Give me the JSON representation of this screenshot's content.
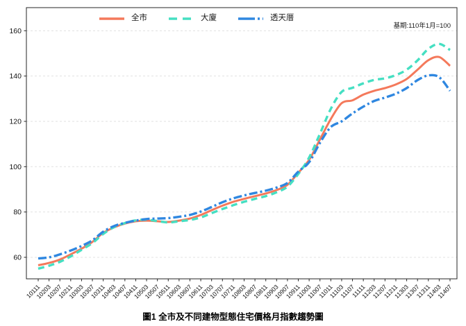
{
  "chart_data": {
    "type": "line",
    "title": "圖1 全市及不同建物型態住宅價格月指數趨勢圖",
    "annotation": "基期:110年1月=100",
    "xlabel": "",
    "ylabel": "",
    "ylim": [
      50.5,
      170.2
    ],
    "yticks": [
      60,
      80,
      100,
      120,
      140,
      160
    ],
    "grid": "horizontal-dashed",
    "legend_position": "top-left-inside",
    "categories": [
      "10111",
      "10203",
      "10207",
      "10211",
      "10303",
      "10307",
      "10311",
      "10403",
      "10407",
      "10411",
      "10503",
      "10507",
      "10511",
      "10603",
      "10607",
      "10611",
      "10703",
      "10707",
      "10711",
      "10803",
      "10807",
      "10811",
      "10903",
      "10907",
      "10911",
      "11003",
      "11007",
      "11011",
      "11103",
      "11107",
      "11111",
      "11203",
      "11207",
      "11211",
      "11303",
      "11307",
      "11311",
      "11403",
      "11407"
    ],
    "series": [
      {
        "name": "全市",
        "color": "#f4795b",
        "style": "solid",
        "values": [
          56.5,
          57.5,
          59.0,
          61.3,
          63.8,
          66.8,
          70.8,
          73.2,
          74.9,
          75.9,
          76.2,
          75.9,
          75.6,
          76.2,
          77.1,
          78.7,
          80.8,
          82.8,
          84.5,
          85.8,
          87.0,
          88.2,
          89.7,
          92.0,
          97.3,
          103.0,
          112.0,
          121.0,
          128.0,
          129.3,
          131.8,
          133.5,
          134.7,
          136.3,
          138.7,
          142.8,
          147.0,
          148.4,
          144.5
        ]
      },
      {
        "name": "大廈",
        "color": "#45dfc2",
        "style": "dashed",
        "values": [
          55.0,
          56.3,
          58.0,
          60.4,
          63.3,
          66.3,
          70.3,
          73.3,
          75.1,
          76.3,
          76.6,
          76.0,
          75.4,
          75.9,
          76.5,
          77.6,
          79.5,
          81.3,
          83.0,
          84.5,
          85.8,
          87.0,
          88.7,
          91.2,
          96.8,
          104.0,
          114.5,
          125.5,
          133.0,
          134.8,
          136.8,
          138.3,
          139.0,
          140.4,
          142.8,
          146.9,
          152.0,
          154.2,
          151.5
        ]
      },
      {
        "name": "透天厝",
        "color": "#2f87e0",
        "style": "dashdot",
        "values": [
          59.5,
          60.0,
          61.3,
          63.0,
          65.0,
          67.5,
          71.3,
          73.8,
          75.2,
          76.2,
          76.9,
          77.1,
          77.3,
          77.9,
          78.7,
          80.2,
          82.2,
          84.3,
          86.0,
          87.3,
          88.4,
          89.4,
          90.8,
          92.8,
          97.8,
          102.0,
          110.5,
          117.5,
          120.0,
          123.5,
          126.5,
          129.0,
          130.5,
          132.2,
          134.7,
          138.2,
          140.3,
          139.5,
          133.5
        ]
      }
    ]
  }
}
